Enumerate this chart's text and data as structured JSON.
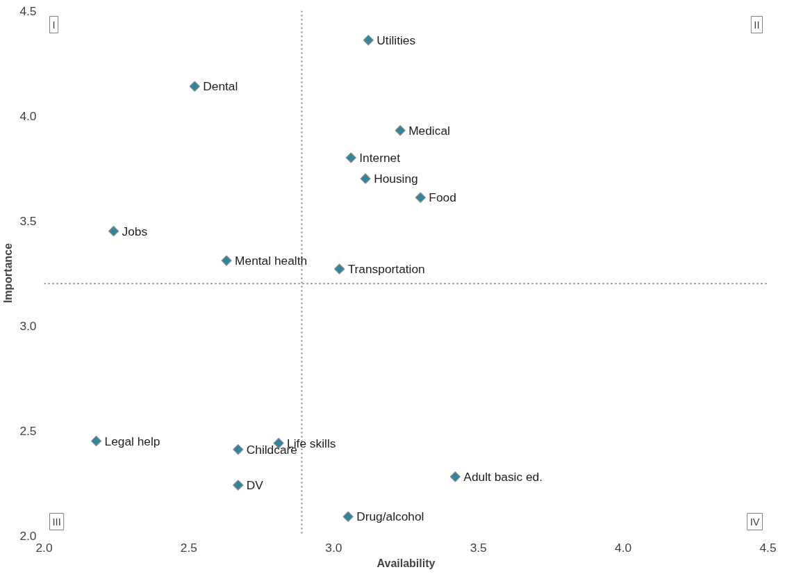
{
  "chart_data": {
    "type": "scatter",
    "xlabel": "Availability",
    "ylabel": "Importance",
    "xlim": [
      2.0,
      4.5
    ],
    "ylim": [
      2.0,
      4.5
    ],
    "xticks": [
      {
        "value": 2.0,
        "label": "2.0"
      },
      {
        "value": 2.5,
        "label": "2.5"
      },
      {
        "value": 3.0,
        "label": "3.0"
      },
      {
        "value": 3.5,
        "label": "3.5"
      },
      {
        "value": 4.0,
        "label": "4.0"
      },
      {
        "value": 4.5,
        "label": "4.5"
      }
    ],
    "yticks": [
      {
        "value": 2.0,
        "label": "2.0"
      },
      {
        "value": 2.5,
        "label": "2.5"
      },
      {
        "value": 3.0,
        "label": "3.0"
      },
      {
        "value": 3.5,
        "label": "3.5"
      },
      {
        "value": 4.0,
        "label": "4.0"
      },
      {
        "value": 4.5,
        "label": "4.5"
      }
    ],
    "grid": false,
    "marker": "diamond",
    "series": [
      {
        "color": "#31859c",
        "x": [
          3.12,
          2.52,
          3.23,
          3.06,
          3.11,
          3.3,
          2.24,
          2.63,
          3.02,
          2.18,
          2.81,
          2.67,
          2.67,
          3.42,
          3.05
        ],
        "values": [
          4.36,
          4.14,
          3.93,
          3.8,
          3.7,
          3.61,
          3.45,
          3.31,
          3.27,
          2.45,
          2.44,
          2.41,
          2.24,
          2.28,
          2.09
        ]
      }
    ],
    "ref_lines": [
      {
        "axis": "x",
        "value": 2.89,
        "label": null,
        "color": "#808080",
        "line_style": "dotted"
      },
      {
        "axis": "y",
        "value": 3.2,
        "label": null,
        "color": "#808080",
        "line_style": "dotted"
      }
    ],
    "annotations": [
      {
        "text": "Utilities",
        "x": 3.12,
        "y": 4.36
      },
      {
        "text": "Dental",
        "x": 2.52,
        "y": 4.14
      },
      {
        "text": "Medical",
        "x": 3.23,
        "y": 3.93
      },
      {
        "text": "Internet",
        "x": 3.06,
        "y": 3.8
      },
      {
        "text": "Housing",
        "x": 3.11,
        "y": 3.7
      },
      {
        "text": "Food",
        "x": 3.3,
        "y": 3.61
      },
      {
        "text": "Jobs",
        "x": 2.24,
        "y": 3.45
      },
      {
        "text": "Mental health",
        "x": 2.63,
        "y": 3.31
      },
      {
        "text": "Transportation",
        "x": 3.02,
        "y": 3.27
      },
      {
        "text": "Legal help",
        "x": 2.18,
        "y": 2.45
      },
      {
        "text": "Life skills",
        "x": 2.81,
        "y": 2.44
      },
      {
        "text": "Childcare",
        "x": 2.67,
        "y": 2.41
      },
      {
        "text": "DV",
        "x": 2.67,
        "y": 2.24
      },
      {
        "text": "Adult basic ed.",
        "x": 3.42,
        "y": 2.28
      },
      {
        "text": "Drug/alcohol",
        "x": 3.05,
        "y": 2.09
      },
      "I",
      "II",
      "III",
      "IV"
    ]
  }
}
